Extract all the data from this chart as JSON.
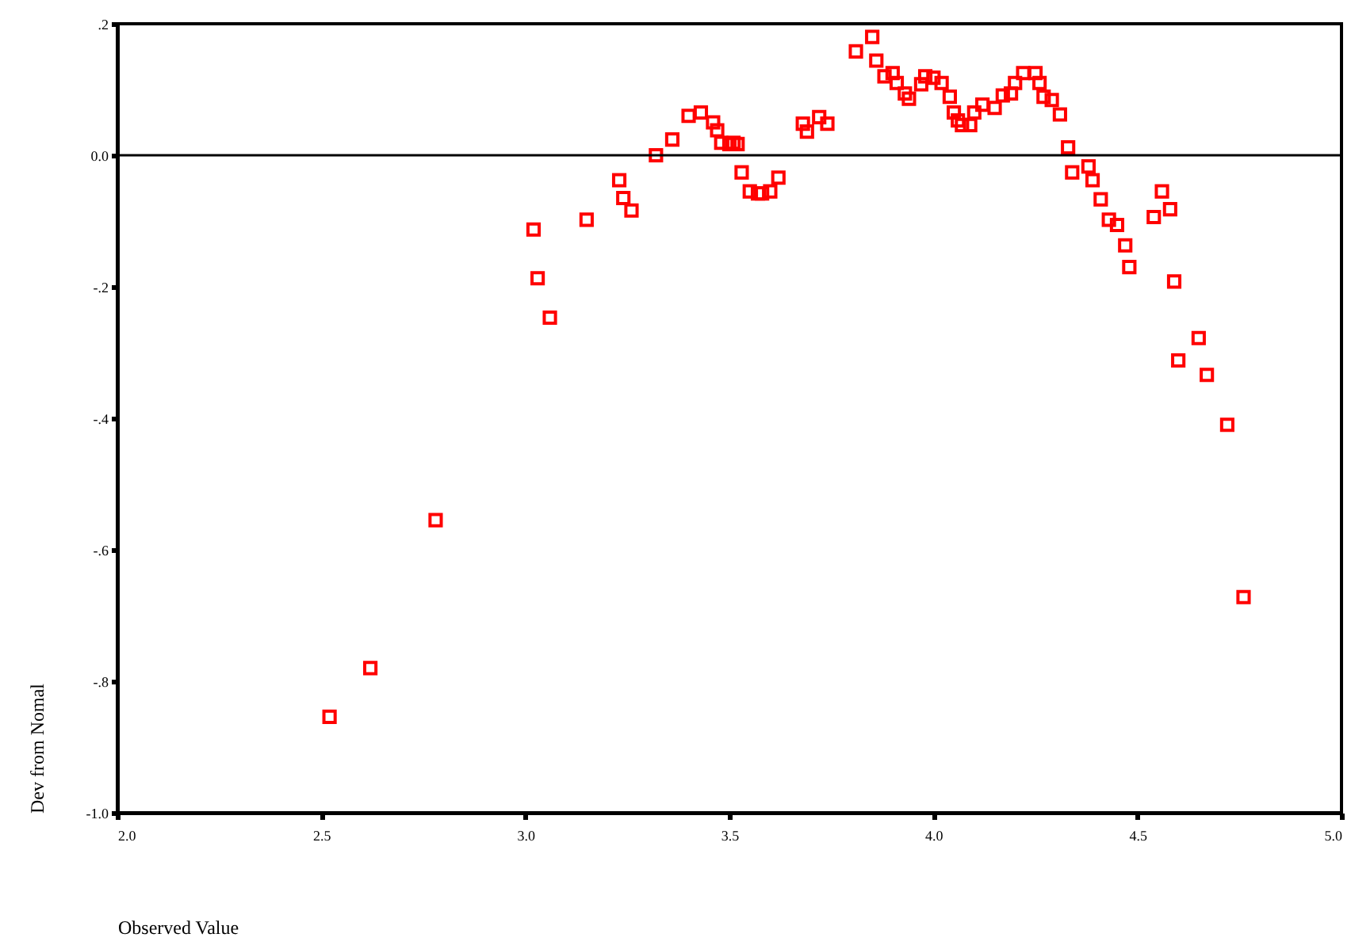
{
  "chart_data": {
    "type": "scatter",
    "xlabel": "Observed Value",
    "ylabel": "Dev from Nomal",
    "marker": "square",
    "grid": false,
    "x": [
      2.52,
      2.62,
      2.78,
      3.02,
      3.03,
      3.06,
      3.15,
      3.23,
      3.24,
      3.26,
      3.32,
      3.36,
      3.4,
      3.43,
      3.46,
      3.47,
      3.48,
      3.5,
      3.51,
      3.52,
      3.53,
      3.55,
      3.57,
      3.58,
      3.6,
      3.62,
      3.68,
      3.69,
      3.72,
      3.74,
      3.81,
      3.85,
      3.86,
      3.88,
      3.9,
      3.91,
      3.93,
      3.94,
      3.97,
      3.98,
      4.0,
      4.02,
      4.04,
      4.05,
      4.06,
      4.07,
      4.09,
      4.1,
      4.12,
      4.15,
      4.17,
      4.19,
      4.2,
      4.22,
      4.25,
      4.26,
      4.27,
      4.29,
      4.31,
      4.33,
      4.34,
      4.38,
      4.39,
      4.41,
      4.43,
      4.45,
      4.47,
      4.48,
      4.54,
      4.56,
      4.58,
      4.59,
      4.6,
      4.65,
      4.67,
      4.72,
      4.76
    ],
    "series": [
      {
        "color": "#ff0000",
        "values": [
          -0.854,
          -0.78,
          -0.555,
          -0.113,
          -0.187,
          -0.247,
          -0.098,
          -0.038,
          -0.065,
          -0.084,
          0.0,
          0.024,
          0.06,
          0.065,
          0.05,
          0.038,
          0.019,
          0.017,
          0.019,
          0.017,
          -0.026,
          -0.055,
          -0.058,
          -0.058,
          -0.055,
          -0.034,
          0.048,
          0.036,
          0.058,
          0.048,
          0.158,
          0.18,
          0.144,
          0.12,
          0.125,
          0.11,
          0.094,
          0.086,
          0.108,
          0.12,
          0.118,
          0.11,
          0.089,
          0.065,
          0.053,
          0.046,
          0.046,
          0.065,
          0.077,
          0.072,
          0.091,
          0.094,
          0.11,
          0.125,
          0.125,
          0.11,
          0.089,
          0.084,
          0.062,
          0.012,
          -0.026,
          -0.017,
          -0.038,
          -0.067,
          -0.098,
          -0.106,
          -0.137,
          -0.17,
          -0.094,
          -0.055,
          -0.082,
          -0.192,
          -0.312,
          -0.278,
          -0.334,
          -0.41,
          -0.672
        ]
      }
    ],
    "xlim": [
      2.0,
      5.0
    ],
    "xticks": [
      {
        "value": 2.0,
        "label": "2.0"
      },
      {
        "value": 2.5,
        "label": "2.5"
      },
      {
        "value": 3.0,
        "label": "3.0"
      },
      {
        "value": 3.5,
        "label": "3.5"
      },
      {
        "value": 4.0,
        "label": "4.0"
      },
      {
        "value": 4.5,
        "label": "4.5"
      },
      {
        "value": 5.0,
        "label": "5.0"
      }
    ],
    "ylim": [
      -1.0,
      0.2
    ],
    "yticks": [
      {
        "value": 0.2,
        "label": ".2"
      },
      {
        "value": 0.0,
        "label": "0.0"
      },
      {
        "value": -0.2,
        "label": "-.2"
      },
      {
        "value": -0.4,
        "label": "-.4"
      },
      {
        "value": -0.6,
        "label": "-.6"
      },
      {
        "value": -0.8,
        "label": "-.8"
      },
      {
        "value": -1.0,
        "label": "-1.0"
      }
    ],
    "ref_lines": [
      {
        "axis": "y",
        "value": 0.0,
        "color": "#000000"
      }
    ]
  }
}
